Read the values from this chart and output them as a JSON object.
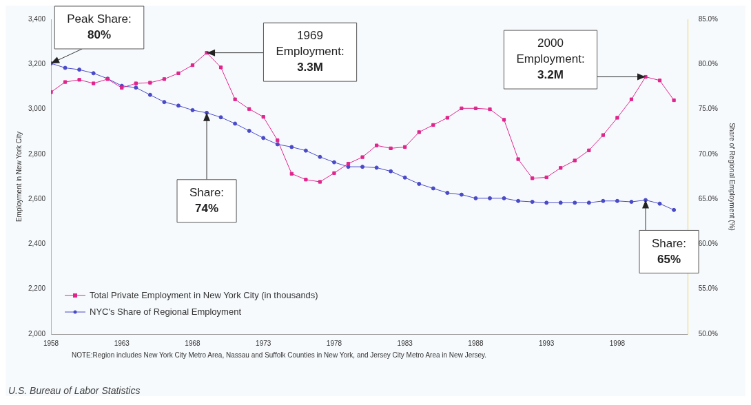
{
  "chart_data": {
    "type": "line",
    "x": [
      1958,
      1959,
      1960,
      1961,
      1962,
      1963,
      1964,
      1965,
      1966,
      1967,
      1968,
      1969,
      1970,
      1971,
      1972,
      1973,
      1974,
      1975,
      1976,
      1977,
      1978,
      1979,
      1980,
      1981,
      1982,
      1983,
      1984,
      1985,
      1986,
      1987,
      1988,
      1989,
      1990,
      1991,
      1992,
      1993,
      1994,
      1995,
      1996,
      1997,
      1998,
      1999,
      2000,
      2001,
      2002
    ],
    "series": [
      {
        "name": "Total Private Employment in New York City (in thousands)",
        "color": "#e0248c",
        "marker": "square",
        "values": [
          3076,
          3121,
          3131,
          3115,
          3134,
          3095,
          3115,
          3118,
          3134,
          3160,
          3196,
          3251,
          3186,
          3044,
          3001,
          2966,
          2862,
          2713,
          2687,
          2677,
          2716,
          2758,
          2787,
          2839,
          2826,
          2832,
          2898,
          2930,
          2962,
          3004,
          3004,
          3000,
          2953,
          2778,
          2693,
          2697,
          2739,
          2772,
          2817,
          2885,
          2962,
          3044,
          3144,
          3128,
          3040
        ]
      },
      {
        "name": "NYC's Share of Regional Employment",
        "color": "#4a4ac8",
        "marker": "circle",
        "axis": "y2",
        "values": [
          80.1,
          79.6,
          79.4,
          79.0,
          78.4,
          77.6,
          77.4,
          76.6,
          75.8,
          75.4,
          74.9,
          74.6,
          74.1,
          73.4,
          72.6,
          71.8,
          71.1,
          70.8,
          70.4,
          69.7,
          69.1,
          68.6,
          68.6,
          68.5,
          68.1,
          67.4,
          66.7,
          66.2,
          65.7,
          65.5,
          65.1,
          65.1,
          65.1,
          64.8,
          64.7,
          64.6,
          64.6,
          64.6,
          64.6,
          64.8,
          64.8,
          64.7,
          64.9,
          64.5,
          63.8
        ]
      }
    ],
    "xlim": [
      1958,
      2003
    ],
    "xticks": [
      1958,
      1963,
      1968,
      1973,
      1978,
      1983,
      1988,
      1993,
      1998
    ],
    "ylim": [
      2000,
      3400
    ],
    "yticks": [
      {
        "value": 2000,
        "label": "2,000"
      },
      {
        "value": 2200,
        "label": "2,200"
      },
      {
        "value": 2400,
        "label": "2,400"
      },
      {
        "value": 2600,
        "label": "2,600"
      },
      {
        "value": 2800,
        "label": "2,800"
      },
      {
        "value": 3000,
        "label": "3,000"
      },
      {
        "value": 3200,
        "label": "3,200"
      },
      {
        "value": 3400,
        "label": "3,400"
      }
    ],
    "y2lim": [
      50,
      85
    ],
    "y2ticks": [
      {
        "value": 50,
        "label": "50.0%"
      },
      {
        "value": 55,
        "label": "55.0%"
      },
      {
        "value": 60,
        "label": "60.0%"
      },
      {
        "value": 65,
        "label": "65.0%"
      },
      {
        "value": 70,
        "label": "70.0%"
      },
      {
        "value": 75,
        "label": "75.0%"
      },
      {
        "value": 80,
        "label": "80.0%"
      },
      {
        "value": 85,
        "label": "85.0%"
      }
    ],
    "ylabel": "Employment in New York City",
    "y2label": "Share of Regional Employment (%)",
    "legend": "bottom left",
    "grid": false,
    "line_style": "solid",
    "annotations": [
      {
        "text": "Peak Share:\n80%",
        "x": 1958,
        "y": 3204
      },
      {
        "text": "1969\nEmployment:\n3.3M",
        "x": 1969,
        "y": 3251
      },
      {
        "text": "2000\nEmployment:\n3.2M",
        "x": 2000,
        "y": 3144
      },
      {
        "text": "Share:\n74%",
        "x": 1969,
        "y": 2984
      },
      {
        "text": "Share:\n65%",
        "x": 2000,
        "y": 2596
      },
      "NOTE:Region includes New York City Metro Area, Nassau and Suffolk Counties in New York, and Jersey City Metro Area in New Jersey.",
      "U.S. Bureau of Labor Statistics"
    ]
  }
}
